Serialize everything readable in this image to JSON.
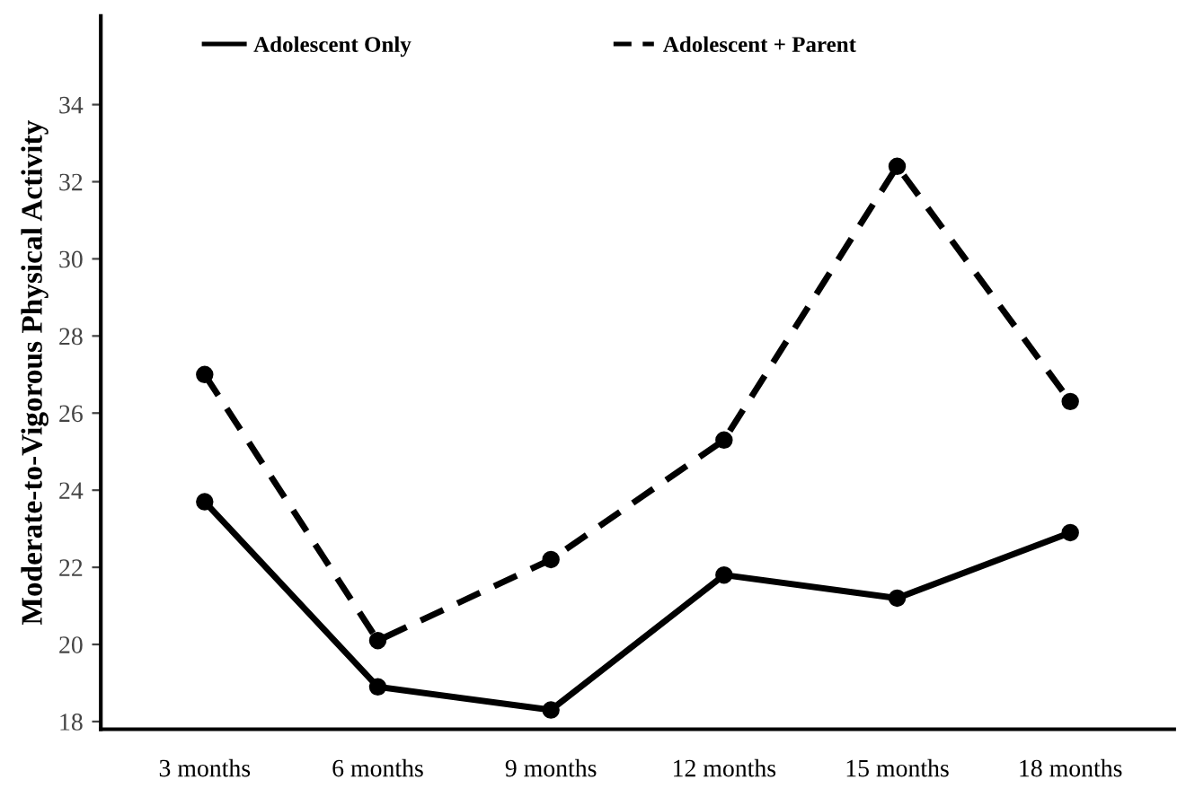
{
  "chart_data": {
    "type": "line",
    "ylabel": "Moderate-to-Vigorous Physical Activity",
    "categories": [
      "3 months",
      "6 months",
      "9 months",
      "12 months",
      "15 months",
      "18 months"
    ],
    "series": [
      {
        "name": "Adolescent Only",
        "color": "#000000",
        "line_style": "solid",
        "values": [
          23.7,
          18.9,
          18.3,
          21.8,
          21.2,
          22.9
        ]
      },
      {
        "name": "Adolescent + Parent",
        "color": "#000000",
        "line_style": "dashed",
        "values": [
          27.0,
          20.1,
          22.2,
          25.3,
          32.4,
          26.3
        ]
      }
    ],
    "ylim": [
      17.8,
      36.3
    ],
    "yticks": [
      18,
      20,
      22,
      24,
      26,
      28,
      30,
      32,
      34
    ],
    "grid": false,
    "legend": "top",
    "marker": "circle"
  }
}
